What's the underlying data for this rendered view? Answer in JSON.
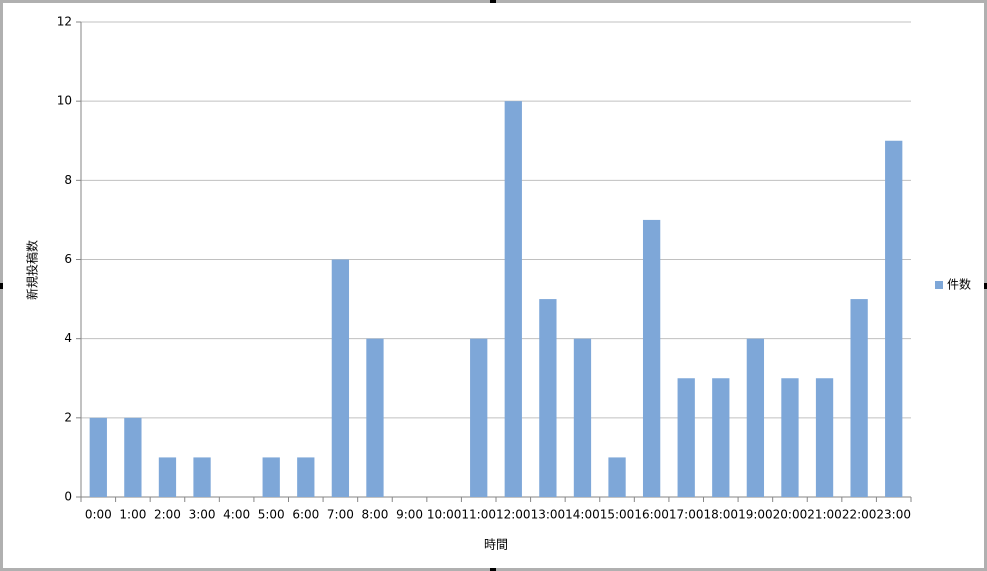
{
  "chart_data": {
    "type": "bar",
    "x_label": "時間",
    "y_label": "新規投稿数",
    "categories": [
      "0:00",
      "1:00",
      "2:00",
      "3:00",
      "4:00",
      "5:00",
      "6:00",
      "7:00",
      "8:00",
      "9:00",
      "10:00",
      "11:00",
      "12:00",
      "13:00",
      "14:00",
      "15:00",
      "16:00",
      "17:00",
      "18:00",
      "19:00",
      "20:00",
      "21:00",
      "22:00",
      "23:00"
    ],
    "series": [
      {
        "name": "件数",
        "color": "#7ea7d8",
        "values": [
          2,
          2,
          1,
          1,
          0,
          1,
          1,
          6,
          4,
          0,
          0,
          4,
          10,
          5,
          4,
          1,
          7,
          3,
          3,
          4,
          3,
          3,
          5,
          9
        ]
      }
    ],
    "ylim": [
      0,
      12
    ],
    "yticks": [
      0,
      2,
      4,
      6,
      8,
      10,
      12
    ],
    "grid": true,
    "legend": "right"
  }
}
